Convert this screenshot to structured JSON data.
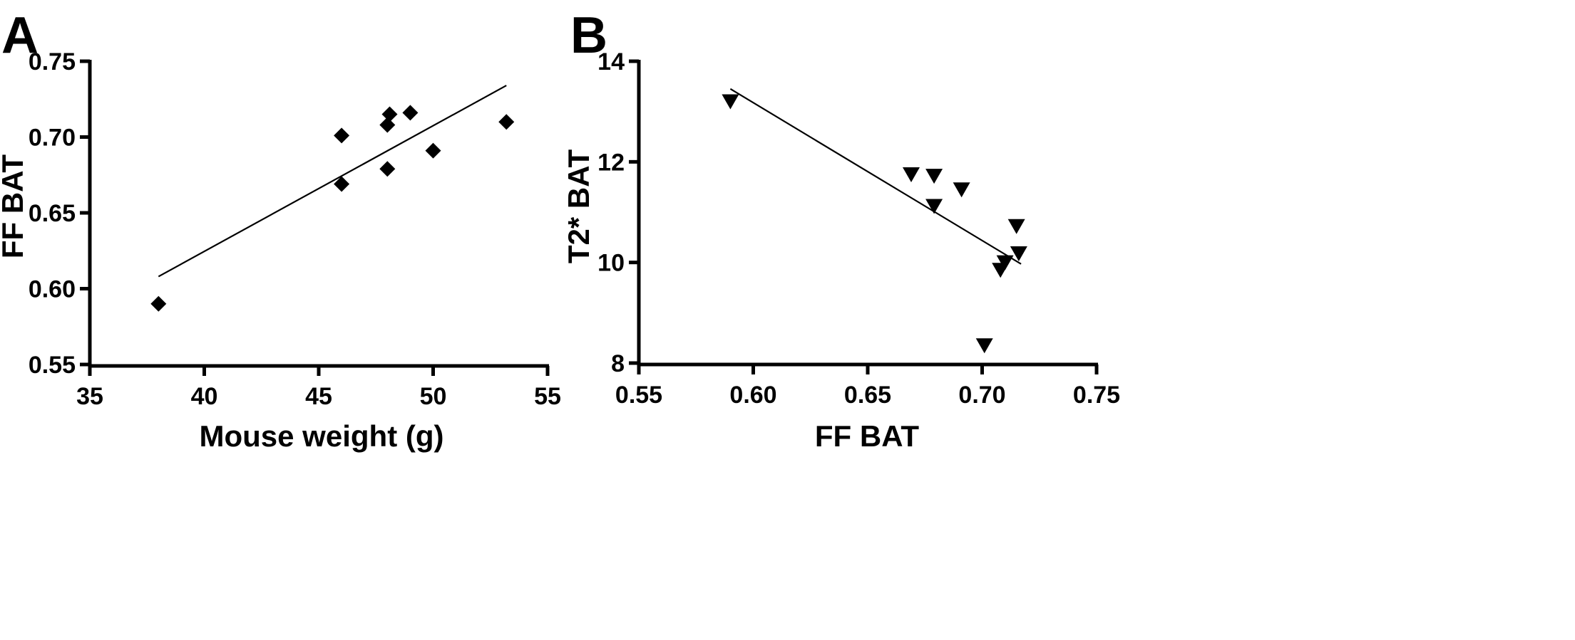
{
  "chart_data": [
    {
      "panel": "A",
      "type": "scatter",
      "marker": "diamond",
      "title": "",
      "xlabel": "Mouse weight (g)",
      "ylabel": "FF BAT",
      "xlim": [
        35,
        55
      ],
      "ylim": [
        0.55,
        0.75
      ],
      "xticks": [
        35,
        40,
        45,
        50,
        55
      ],
      "xtick_labels": [
        "35",
        "40",
        "45",
        "50",
        "55"
      ],
      "yticks": [
        0.55,
        0.6,
        0.65,
        0.7,
        0.75
      ],
      "ytick_labels": [
        "0.55",
        "0.60",
        "0.65",
        "0.70",
        "0.75"
      ],
      "grid": false,
      "points": [
        {
          "x": 38.0,
          "y": 0.59
        },
        {
          "x": 46.0,
          "y": 0.701
        },
        {
          "x": 46.0,
          "y": 0.669
        },
        {
          "x": 48.0,
          "y": 0.708
        },
        {
          "x": 48.0,
          "y": 0.679
        },
        {
          "x": 48.1,
          "y": 0.715
        },
        {
          "x": 49.0,
          "y": 0.716
        },
        {
          "x": 50.0,
          "y": 0.691
        },
        {
          "x": 53.2,
          "y": 0.71
        }
      ],
      "fit_line": {
        "x": [
          38.0,
          53.2
        ],
        "y": [
          0.608,
          0.734
        ]
      }
    },
    {
      "panel": "B",
      "type": "scatter",
      "marker": "triangle-down",
      "title": "",
      "xlabel": "FF BAT",
      "ylabel": "T2* BAT",
      "xlim": [
        0.55,
        0.75
      ],
      "ylim": [
        8,
        14
      ],
      "xticks": [
        0.55,
        0.6,
        0.65,
        0.7,
        0.75
      ],
      "xtick_labels": [
        "0.55",
        "0.60",
        "0.65",
        "0.70",
        "0.75"
      ],
      "yticks": [
        8,
        10,
        12,
        14
      ],
      "ytick_labels": [
        "8",
        "10",
        "12",
        "14"
      ],
      "grid": false,
      "points": [
        {
          "x": 0.59,
          "y": 13.2
        },
        {
          "x": 0.669,
          "y": 11.75
        },
        {
          "x": 0.679,
          "y": 11.72
        },
        {
          "x": 0.679,
          "y": 11.12
        },
        {
          "x": 0.691,
          "y": 11.45
        },
        {
          "x": 0.701,
          "y": 8.35
        },
        {
          "x": 0.708,
          "y": 9.85
        },
        {
          "x": 0.71,
          "y": 10.0
        },
        {
          "x": 0.715,
          "y": 10.72
        },
        {
          "x": 0.716,
          "y": 10.18
        }
      ],
      "fit_line": {
        "x": [
          0.59,
          0.717
        ],
        "y": [
          13.45,
          9.97
        ]
      }
    }
  ]
}
